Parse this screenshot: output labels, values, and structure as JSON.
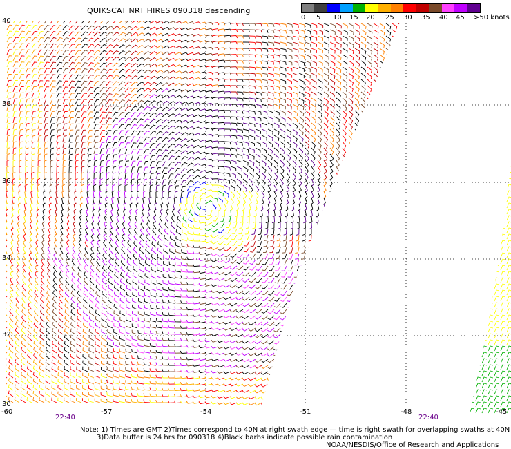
{
  "header": {
    "title": "QUIKSCAT NRT HIRES 090318 descending"
  },
  "legend": {
    "colors": [
      "#7f7f7f",
      "#404040",
      "#0000ff",
      "#00a0ff",
      "#00b000",
      "#ffff00",
      "#ffb000",
      "#ff8000",
      "#ff0000",
      "#c00000",
      "#7a4a2a",
      "#ff40ff",
      "#c000ff",
      "#600090"
    ],
    "labels": [
      "0",
      "5",
      "10",
      "15",
      "20",
      "25",
      "30",
      "35",
      "40",
      "45",
      ">50 knots"
    ]
  },
  "axes": {
    "lat_labels": [
      "40",
      "38",
      "36",
      "34",
      "32",
      "30"
    ],
    "lon_labels": [
      "-60",
      "-57",
      "-54",
      "-51",
      "-48",
      "-45"
    ]
  },
  "times": [
    "22:40",
    "22:40"
  ],
  "notes": {
    "line1": "Note: 1) Times are GMT 2)Times correspond to 40N at right swath edge — time is right swath for overlapping swaths at 40N",
    "line2": "3)Data buffer is 24 hrs for 090318 4)Black barbs indicate possible rain contamination",
    "credit": "NOAA/NESDIS/Office of Research and Applications"
  }
}
